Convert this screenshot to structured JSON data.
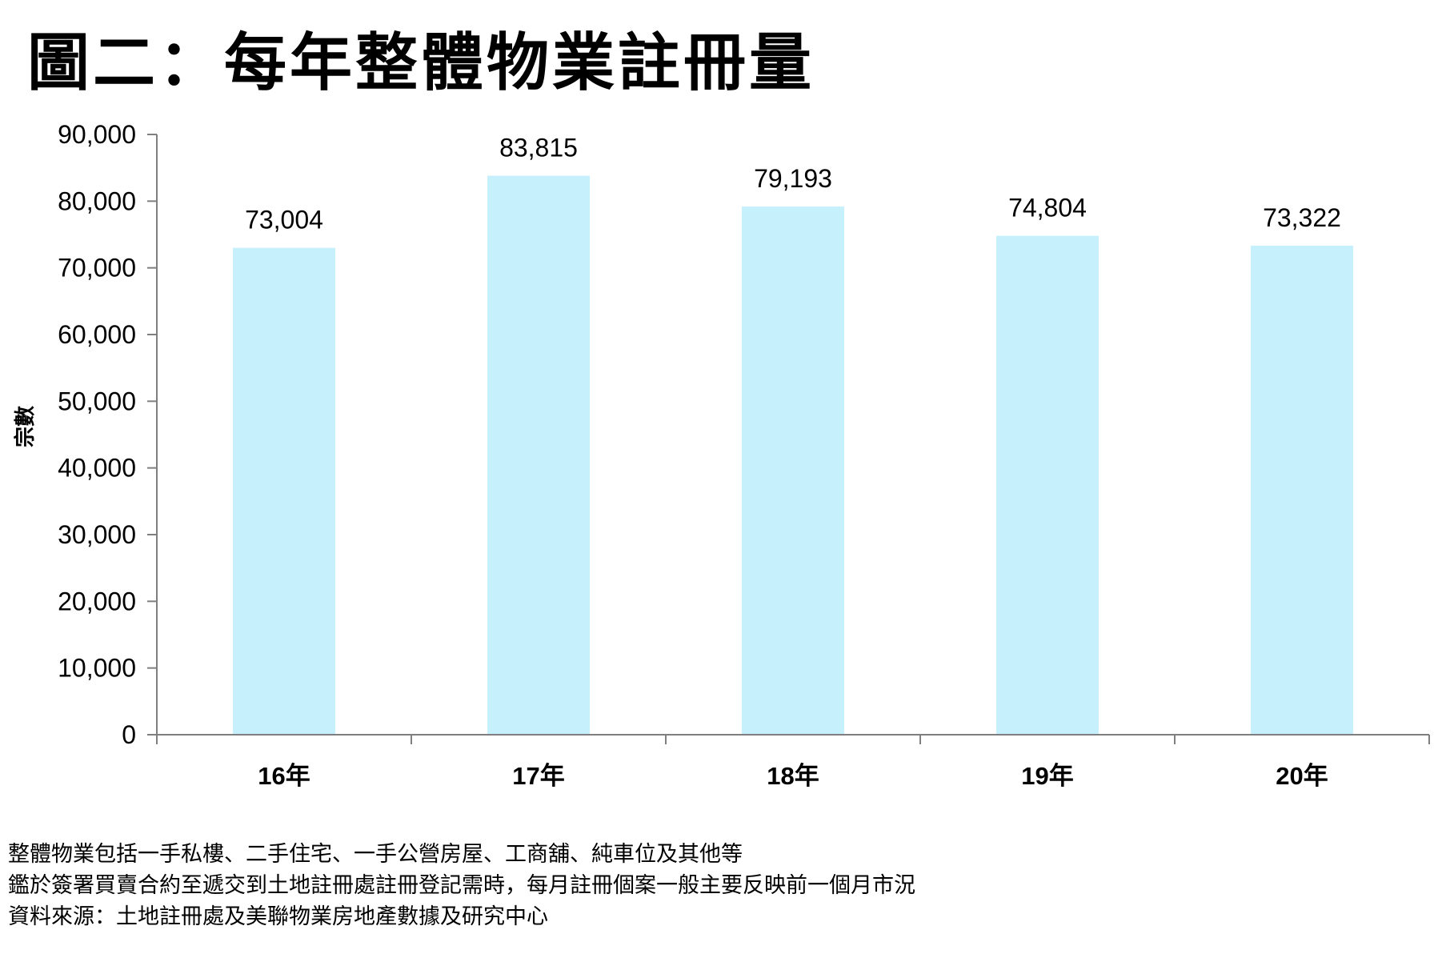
{
  "chart_data": {
    "type": "bar",
    "title": "圖二：每年整體物業註冊量",
    "categories": [
      "16年",
      "17年",
      "18年",
      "19年",
      "20年"
    ],
    "values": [
      73004,
      83815,
      79193,
      74804,
      73322
    ],
    "value_labels": [
      "73,004",
      "83,815",
      "79,193",
      "74,804",
      "73,322"
    ],
    "ylabel": "宗數",
    "xlabel": "",
    "ylim": [
      0,
      90000
    ],
    "yticks": [
      0,
      10000,
      20000,
      30000,
      40000,
      50000,
      60000,
      70000,
      80000,
      90000
    ],
    "ytick_labels": [
      "0",
      "10,000",
      "20,000",
      "30,000",
      "40,000",
      "50,000",
      "60,000",
      "70,000",
      "80,000",
      "90,000"
    ],
    "grid": false,
    "bar_color": "#c6f0fb",
    "axis_color": "#7f7f7f"
  },
  "notes": [
    "整體物業包括一手私樓、二手住宅、一手公營房屋、工商舖、純車位及其他等",
    "鑑於簽署買賣合約至遞交到土地註冊處註冊登記需時，每月註冊個案一般主要反映前一個月市況",
    "資料來源：土地註冊處及美聯物業房地產數據及研究中心"
  ]
}
